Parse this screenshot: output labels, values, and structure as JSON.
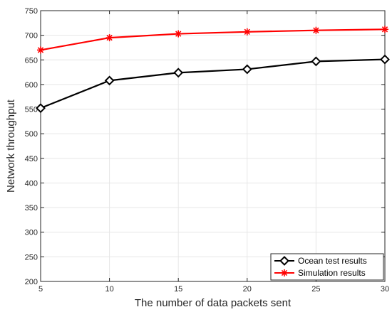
{
  "chart_data": {
    "type": "line",
    "xlabel": "The number of data packets sent",
    "ylabel": "Network throughput",
    "x": [
      5,
      10,
      15,
      20,
      25,
      30
    ],
    "xlim": [
      5,
      30
    ],
    "ylim": [
      200,
      750
    ],
    "x_ticks": [
      "5",
      "10",
      "15",
      "20",
      "25",
      "30"
    ],
    "y_ticks": [
      "200",
      "250",
      "300",
      "350",
      "400",
      "450",
      "500",
      "550",
      "600",
      "650",
      "700",
      "750"
    ],
    "grid": true,
    "legend_position": "bottom-right",
    "series": [
      {
        "name": "Ocean test results",
        "color": "#000000",
        "marker": "diamond",
        "values": [
          552,
          608,
          624,
          631,
          647,
          651
        ]
      },
      {
        "name": "Simulation results",
        "color": "#ff0000",
        "marker": "asterisk",
        "values": [
          670,
          695,
          703,
          707,
          710,
          712
        ]
      }
    ]
  }
}
